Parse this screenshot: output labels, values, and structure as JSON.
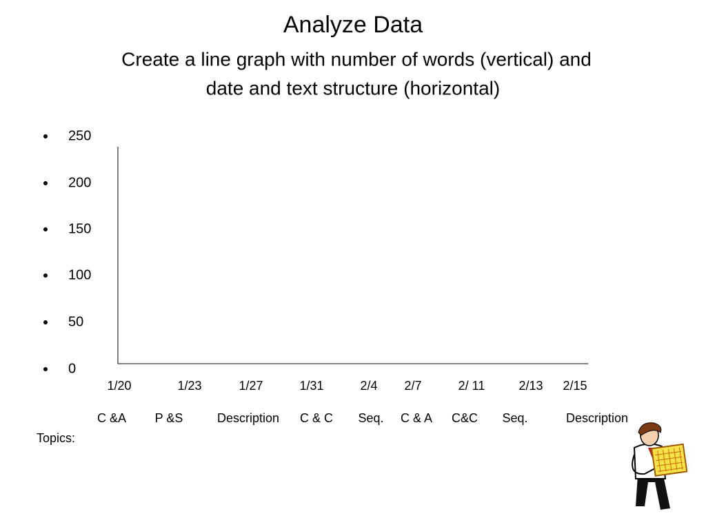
{
  "title": "Analyze Data",
  "subtitle_lines": [
    "Create a line graph with number of words (vertical) and",
    "date and text structure (horizontal)"
  ],
  "bullets": [
    "250",
    "200",
    "150",
    "100",
    "50",
    "0"
  ],
  "dates": [
    "1/20",
    "1/23",
    "1/27",
    "1/31",
    "2/4",
    "2/7",
    "2/ 11",
    "2/13",
    "2/15"
  ],
  "topics": [
    "C &A",
    "P &S",
    "Description",
    "C & C",
    "Seq.",
    "C & A",
    "C&C",
    "Seq.",
    "Description"
  ],
  "topics_label": "Topics:"
}
